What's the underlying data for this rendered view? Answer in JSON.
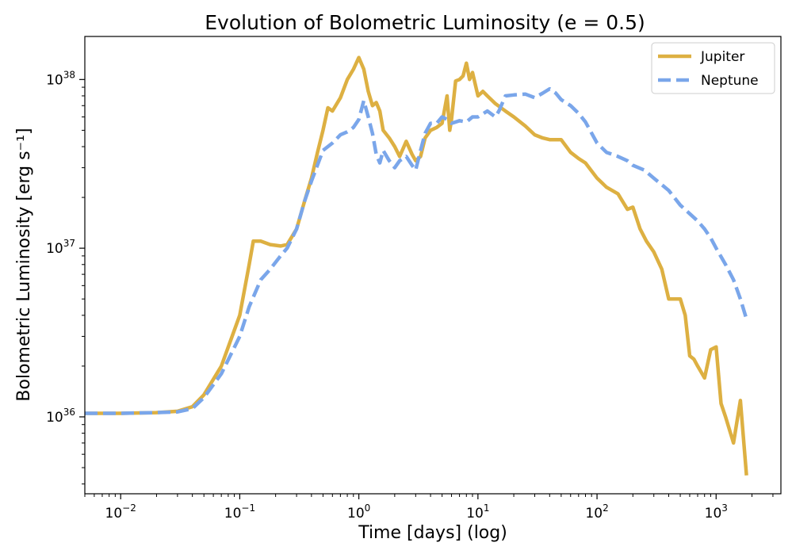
{
  "chart_data": {
    "type": "line",
    "title": "Evolution of Bolometric Luminosity (e = 0.5)",
    "xlabel": "Time [days] (log)",
    "ylabel": "Bolometric Luminosity [erg s⁻¹]",
    "xscale": "log",
    "yscale": "log",
    "xlim": [
      0.005,
      3500
    ],
    "ylim": [
      3.5e+35,
      1.8e+38
    ],
    "x_ticks": [
      {
        "value": 0.01,
        "base": "10",
        "exp": "−2"
      },
      {
        "value": 0.1,
        "base": "10",
        "exp": "−1"
      },
      {
        "value": 1,
        "base": "10",
        "exp": "0"
      },
      {
        "value": 10,
        "base": "10",
        "exp": "1"
      },
      {
        "value": 100,
        "base": "10",
        "exp": "2"
      },
      {
        "value": 1000,
        "base": "10",
        "exp": "3"
      }
    ],
    "y_ticks": [
      {
        "value": 1e+36,
        "base": "10",
        "exp": "36"
      },
      {
        "value": 1e+37,
        "base": "10",
        "exp": "37"
      },
      {
        "value": 1e+38,
        "base": "10",
        "exp": "38"
      }
    ],
    "legend": {
      "position": "top-right"
    },
    "series": [
      {
        "name": "Jupiter",
        "color": "#ddb042",
        "dash": "solid",
        "x": [
          0.005,
          0.01,
          0.02,
          0.03,
          0.04,
          0.05,
          0.07,
          0.1,
          0.12,
          0.13,
          0.15,
          0.18,
          0.22,
          0.25,
          0.3,
          0.35,
          0.4,
          0.45,
          0.5,
          0.55,
          0.6,
          0.7,
          0.8,
          0.9,
          1.0,
          1.1,
          1.2,
          1.3,
          1.4,
          1.5,
          1.6,
          1.8,
          2.0,
          2.2,
          2.5,
          2.8,
          3.0,
          3.3,
          3.6,
          4.0,
          4.5,
          5.0,
          5.5,
          5.8,
          6.0,
          6.5,
          7.0,
          7.5,
          8.0,
          8.5,
          9.0,
          10.0,
          11.0,
          12.0,
          14.0,
          17.0,
          20.0,
          25.0,
          30.0,
          35.0,
          40.0,
          50.0,
          60.0,
          70.0,
          80.0,
          100.0,
          120.0,
          150.0,
          180.0,
          200.0,
          230.0,
          260.0,
          300.0,
          350.0,
          400.0,
          450.0,
          500.0,
          550.0,
          600.0,
          650.0,
          700.0,
          800.0,
          900.0,
          1000.0,
          1100.0,
          1200.0,
          1400.0,
          1600.0,
          1800.0
        ],
        "y": [
          1.05e+36,
          1.05e+36,
          1.06e+36,
          1.08e+36,
          1.15e+36,
          1.35e+36,
          2e+36,
          4e+36,
          8e+36,
          1.1e+37,
          1.1e+37,
          1.05e+37,
          1.03e+37,
          1.05e+37,
          1.3e+37,
          1.9e+37,
          2.6e+37,
          3.7e+37,
          5e+37,
          6.8e+37,
          6.5e+37,
          7.8e+37,
          1e+38,
          1.15e+38,
          1.35e+38,
          1.15e+38,
          8.5e+37,
          7e+37,
          7.3e+37,
          6.5e+37,
          5e+37,
          4.5e+37,
          4e+37,
          3.5e+37,
          4.3e+37,
          3.6e+37,
          3.3e+37,
          3.5e+37,
          4.5e+37,
          5e+37,
          5.2e+37,
          5.5e+37,
          8e+37,
          5e+37,
          5.8e+37,
          9.8e+37,
          1e+38,
          1.05e+38,
          1.25e+38,
          1e+38,
          1.1e+38,
          8e+37,
          8.5e+37,
          8e+37,
          7.2e+37,
          6.5e+37,
          6e+37,
          5.3e+37,
          4.7e+37,
          4.5e+37,
          4.4e+37,
          4.4e+37,
          3.7e+37,
          3.4e+37,
          3.2e+37,
          2.6e+37,
          2.3e+37,
          2.1e+37,
          1.7e+37,
          1.75e+37,
          1.3e+37,
          1.1e+37,
          9.5e+36,
          7.5e+36,
          5e+36,
          5e+36,
          5e+36,
          4e+36,
          2.3e+36,
          2.2e+36,
          2e+36,
          1.7e+36,
          2.5e+36,
          2.6e+36,
          1.2e+36,
          1e+36,
          7e+35,
          1.25e+36,
          4.5e+35
        ]
      },
      {
        "name": "Neptune",
        "color": "#7aa6ea",
        "dash": "dashed",
        "x": [
          0.005,
          0.01,
          0.02,
          0.03,
          0.04,
          0.05,
          0.07,
          0.1,
          0.12,
          0.15,
          0.18,
          0.22,
          0.25,
          0.3,
          0.35,
          0.4,
          0.5,
          0.6,
          0.7,
          0.8,
          0.9,
          1.0,
          1.1,
          1.2,
          1.3,
          1.4,
          1.5,
          1.6,
          1.8,
          2.0,
          2.2,
          2.5,
          2.8,
          3.0,
          3.3,
          3.6,
          4.0,
          4.5,
          5.0,
          5.5,
          6.0,
          7.0,
          8.0,
          9.0,
          10.0,
          12.0,
          14.0,
          15.0,
          17.0,
          20.0,
          25.0,
          30.0,
          35.0,
          40.0,
          45.0,
          50.0,
          60.0,
          70.0,
          80.0,
          100.0,
          120.0,
          150.0,
          180.0,
          200.0,
          250.0,
          300.0,
          400.0,
          500.0,
          600.0,
          700.0,
          800.0,
          900.0,
          1000.0,
          1200.0,
          1400.0,
          1600.0,
          1800.0
        ],
        "y": [
          1.05e+36,
          1.05e+36,
          1.06e+36,
          1.07e+36,
          1.12e+36,
          1.3e+36,
          1.8e+36,
          3e+36,
          4.5e+36,
          6.5e+36,
          7.5e+36,
          9e+36,
          1e+37,
          1.3e+37,
          1.9e+37,
          2.5e+37,
          3.8e+37,
          4.2e+37,
          4.7e+37,
          4.9e+37,
          5.2e+37,
          5.8e+37,
          7.5e+37,
          6e+37,
          4.8e+37,
          3.6e+37,
          3.2e+37,
          3.8e+37,
          3.3e+37,
          3e+37,
          3.3e+37,
          3.5e+37,
          3.1e+37,
          2.9e+37,
          3.8e+37,
          4.8e+37,
          5.5e+37,
          5.5e+37,
          6e+37,
          5.8e+37,
          5.5e+37,
          5.7e+37,
          5.6e+37,
          6e+37,
          6e+37,
          6.5e+37,
          6e+37,
          6.5e+37,
          8e+37,
          8.1e+37,
          8.2e+37,
          7.8e+37,
          8.3e+37,
          8.8e+37,
          8.3e+37,
          7.6e+37,
          7e+37,
          6.3e+37,
          5.6e+37,
          4.2e+37,
          3.7e+37,
          3.5e+37,
          3.3e+37,
          3.1e+37,
          2.9e+37,
          2.6e+37,
          2.2e+37,
          1.8e+37,
          1.6e+37,
          1.45e+37,
          1.3e+37,
          1.15e+37,
          1e+37,
          8e+36,
          6.5e+36,
          5e+36,
          3.8e+36
        ]
      }
    ]
  }
}
